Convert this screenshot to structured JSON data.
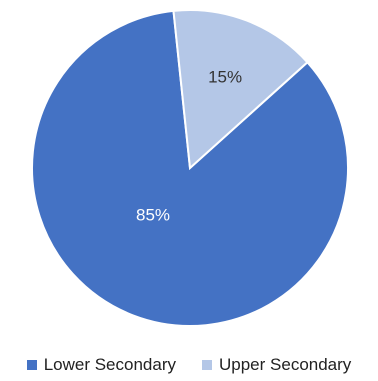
{
  "chart_data": {
    "type": "pie",
    "title": "",
    "categories": [
      "Lower Secondary",
      "Upper Secondary"
    ],
    "values": [
      85,
      15
    ],
    "value_labels": [
      "85%",
      "15%"
    ],
    "colors": [
      "#4472C4",
      "#B4C7E7"
    ],
    "label_colors": [
      "#FFFFFF",
      "#333333"
    ],
    "legend_position": "bottom"
  }
}
